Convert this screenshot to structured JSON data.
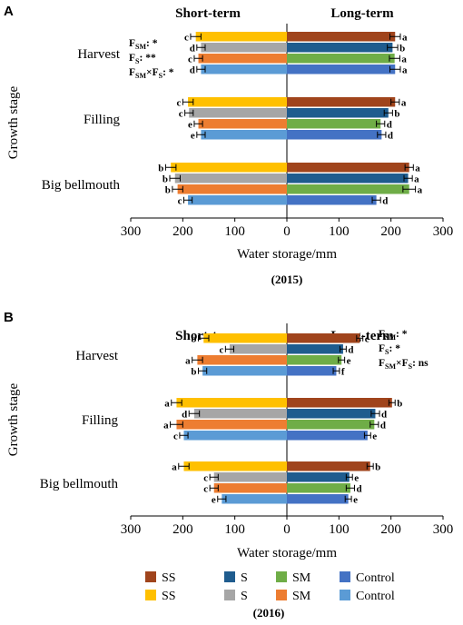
{
  "colors": {
    "long": {
      "SS": "#a0441c",
      "S": "#1f5c8e",
      "SM": "#6fad47",
      "Control": "#4472c4"
    },
    "short": {
      "SS": "#ffc000",
      "S": "#a6a6a6",
      "SM": "#ed7d31",
      "Control": "#5b9bd5"
    }
  },
  "legend": {
    "long": [
      "SS",
      "S",
      "SM",
      "Control"
    ],
    "short": [
      "SS",
      "S",
      "SM",
      "Control"
    ]
  },
  "chart_data": [
    {
      "type": "bar",
      "panel": "A",
      "year_label": "(2015)",
      "headers": {
        "left": "Short-term",
        "right": "Long-term"
      },
      "ylabel": "Growth stage",
      "xlabel": "Water storage/mm",
      "xticks": [
        "300",
        "200",
        "100",
        "0",
        "100",
        "200",
        "300"
      ],
      "xlim": [
        -300,
        300
      ],
      "stats": [
        {
          "label": "F",
          "sub": "SM",
          "suffix": ": *"
        },
        {
          "label": "F",
          "sub": "S",
          "suffix": ": **"
        },
        {
          "label": "F",
          "sub": "SM",
          "suffix": "×F",
          "sub2": "S",
          "suffix2": ": *"
        }
      ],
      "stages": [
        {
          "name": "Harvest",
          "short": {
            "values": [
              175,
              165,
              170,
              165
            ],
            "errors": [
              10,
              8,
              8,
              8
            ],
            "letters": [
              "c",
              "d",
              "c",
              "d"
            ]
          },
          "long": {
            "values": [
              208,
              203,
              207,
              208
            ],
            "errors": [
              10,
              10,
              10,
              10
            ],
            "letters": [
              "a",
              "b",
              "a",
              "a"
            ]
          }
        },
        {
          "name": "Filling",
          "short": {
            "values": [
              190,
              188,
              170,
              165
            ],
            "errors": [
              10,
              8,
              8,
              8
            ],
            "letters": [
              "c",
              "c",
              "e",
              "e"
            ]
          },
          "long": {
            "values": [
              208,
              195,
              180,
              182
            ],
            "errors": [
              8,
              8,
              8,
              8
            ],
            "letters": [
              "a",
              "b",
              "d",
              "d"
            ]
          }
        },
        {
          "name": "Big bellmouth",
          "short": {
            "values": [
              223,
              215,
              210,
              190
            ],
            "errors": [
              10,
              10,
              10,
              8
            ],
            "letters": [
              "b",
              "b",
              "b",
              "c"
            ]
          },
          "long": {
            "values": [
              235,
              233,
              235,
              172
            ],
            "errors": [
              8,
              8,
              12,
              8
            ],
            "letters": [
              "a",
              "a",
              "a",
              "d"
            ]
          }
        }
      ]
    },
    {
      "type": "bar",
      "panel": "B",
      "year_label": "(2016)",
      "headers": {
        "left": "Short-term",
        "right": "Long-term"
      },
      "ylabel": "Growth stage",
      "xlabel": "Water storage/mm",
      "xticks": [
        "300",
        "200",
        "100",
        "0",
        "100",
        "200",
        "300"
      ],
      "xlim": [
        -300,
        300
      ],
      "stats": [
        {
          "label": "F",
          "sub": "SM",
          "suffix": ": *"
        },
        {
          "label": "F",
          "sub": "S",
          "suffix": ": *"
        },
        {
          "label": "F",
          "sub": "SM",
          "suffix": "×F",
          "sub2": "S",
          "suffix2": ": ns"
        }
      ],
      "stages": [
        {
          "name": "Harvest",
          "short": {
            "values": [
              160,
              110,
              172,
              162
            ],
            "errors": [
              10,
              8,
              10,
              8
            ],
            "letters": [
              "b",
              "c",
              "a",
              "b"
            ]
          },
          "long": {
            "values": [
              140,
              108,
              105,
              95
            ],
            "errors": [
              6,
              6,
              6,
              6
            ],
            "letters": [
              "c",
              "d",
              "e",
              "f"
            ]
          }
        },
        {
          "name": "Filling",
          "short": {
            "values": [
              212,
              178,
              212,
              198
            ],
            "errors": [
              10,
              10,
              12,
              8
            ],
            "letters": [
              "a",
              "d",
              "a",
              "c"
            ]
          },
          "long": {
            "values": [
              202,
              170,
              168,
              155
            ],
            "errors": [
              6,
              8,
              8,
              6
            ],
            "letters": [
              "b",
              "d",
              "d",
              "e"
            ]
          }
        },
        {
          "name": "Big bellmouth",
          "short": {
            "values": [
              198,
              140,
              140,
              125
            ],
            "errors": [
              10,
              8,
              8,
              8
            ],
            "letters": [
              "a",
              "c",
              "c",
              "e"
            ]
          },
          "long": {
            "values": [
              160,
              120,
              122,
              118
            ],
            "errors": [
              6,
              6,
              8,
              6
            ],
            "letters": [
              "b",
              "e",
              "d",
              "e"
            ]
          }
        }
      ]
    }
  ]
}
